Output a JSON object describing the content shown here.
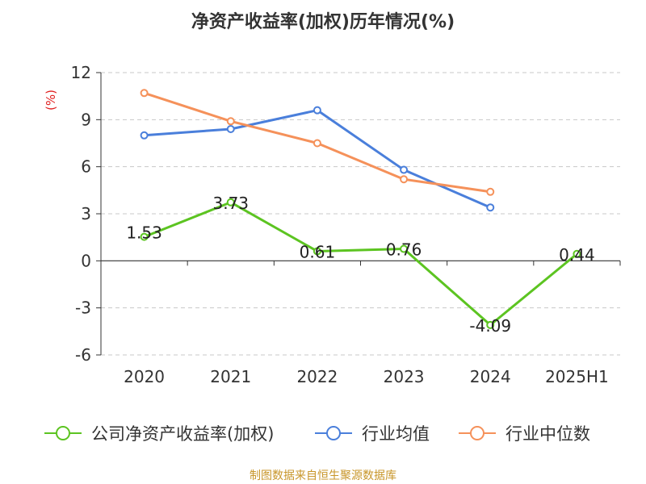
{
  "chart_data": {
    "type": "line",
    "title": "净资产收益率(加权)历年情况(%)",
    "ylabel": "(%)",
    "xlabel": "",
    "categories": [
      "2020",
      "2021",
      "2022",
      "2023",
      "2024",
      "2025H1"
    ],
    "ylim": [
      -6,
      12
    ],
    "yticks": [
      -6,
      -3,
      0,
      3,
      6,
      9,
      12
    ],
    "grid": true,
    "legend_position": "bottom",
    "series": [
      {
        "name": "公司净资产收益率(加权)",
        "color": "#5cc421",
        "values": [
          1.53,
          3.73,
          0.61,
          0.76,
          -4.09,
          0.44
        ],
        "data_labels": [
          "1.53",
          "3.73",
          "0.61",
          "0.76",
          "-4.09",
          "0.44"
        ]
      },
      {
        "name": "行业均值",
        "color": "#4a7fdb",
        "values": [
          8.0,
          8.4,
          9.6,
          5.8,
          3.4,
          null
        ]
      },
      {
        "name": "行业中位数",
        "color": "#f5915a",
        "values": [
          10.7,
          8.9,
          7.5,
          5.2,
          4.4,
          null
        ]
      }
    ],
    "source": "制图数据来自恒生聚源数据库"
  }
}
